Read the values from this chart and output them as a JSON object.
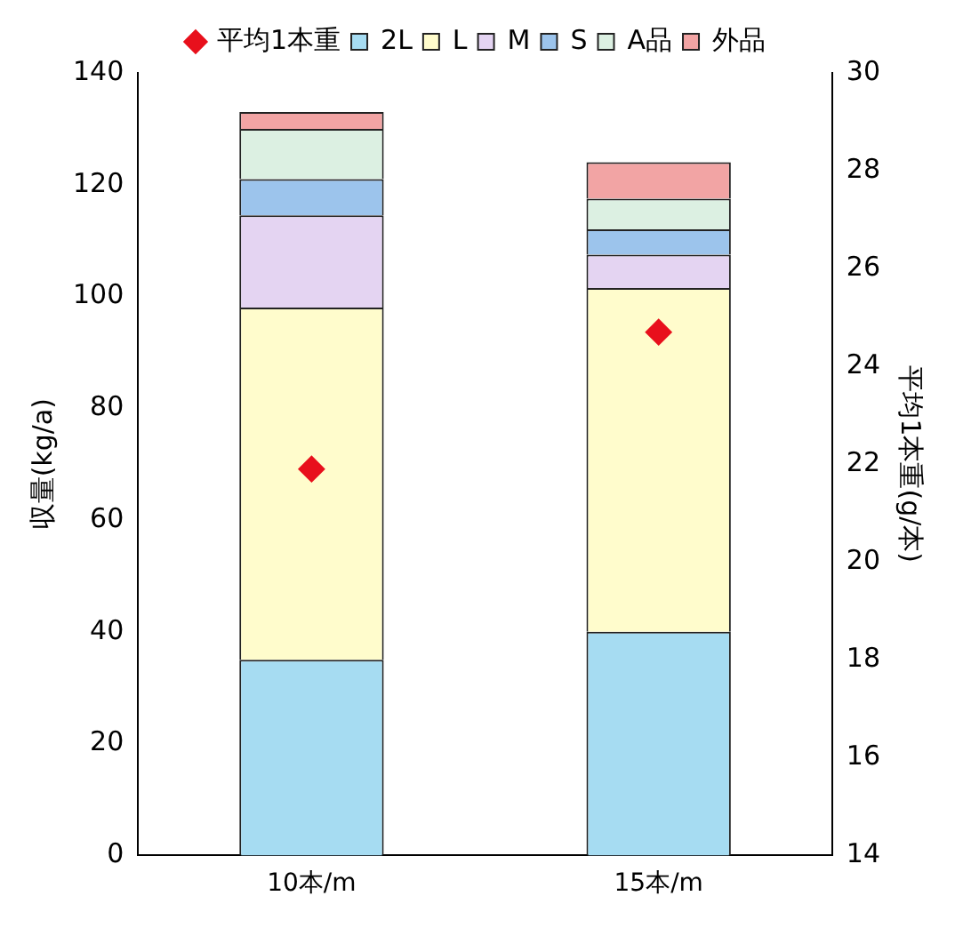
{
  "chart_data": {
    "type": "bar",
    "stacked": true,
    "categories": [
      "10本/m",
      "15本/m"
    ],
    "series": [
      {
        "name": "2L",
        "color": "#a6dcf2",
        "values": [
          35,
          40
        ]
      },
      {
        "name": "L",
        "color": "#fffccc",
        "values": [
          63,
          61.5
        ]
      },
      {
        "name": "M",
        "color": "#e4d4f2",
        "values": [
          16.5,
          6
        ]
      },
      {
        "name": "S",
        "color": "#9cc4ec",
        "values": [
          6.5,
          4.5
        ]
      },
      {
        "name": "A品",
        "color": "#dcf0e2",
        "values": [
          9,
          5.5
        ]
      },
      {
        "name": "外品",
        "color": "#f2a4a4",
        "values": [
          3,
          6.5
        ]
      },
      {
        "name": "平均1本重",
        "type": "scatter",
        "axis": "y2",
        "color": "#e8101c",
        "values": [
          21.9,
          24.7
        ]
      }
    ],
    "ylabel": "収量(kg/a)",
    "y2label": "平均1本重(g/本)",
    "ylim": [
      0,
      140
    ],
    "yticks": [
      0,
      20,
      40,
      60,
      80,
      100,
      120,
      140
    ],
    "y2lim": [
      14,
      30
    ],
    "y2ticks": [
      14,
      16,
      18,
      20,
      22,
      24,
      26,
      28,
      30
    ],
    "legend": "top",
    "marker": "diamond",
    "grid": false
  }
}
